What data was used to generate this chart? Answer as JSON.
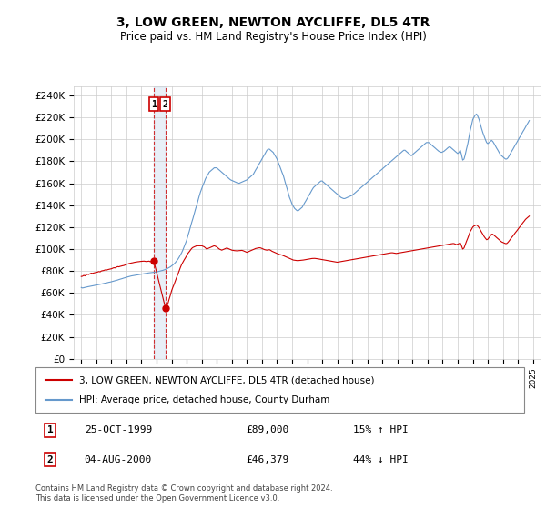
{
  "title": "3, LOW GREEN, NEWTON AYCLIFFE, DL5 4TR",
  "subtitle": "Price paid vs. HM Land Registry's House Price Index (HPI)",
  "ylabel_ticks": [
    0,
    20000,
    40000,
    60000,
    80000,
    100000,
    120000,
    140000,
    160000,
    180000,
    200000,
    220000,
    240000
  ],
  "ylabel_labels": [
    "£0",
    "£20K",
    "£40K",
    "£60K",
    "£80K",
    "£100K",
    "£120K",
    "£140K",
    "£160K",
    "£180K",
    "£200K",
    "£220K",
    "£240K"
  ],
  "xlim": [
    1994.5,
    2025.5
  ],
  "ylim": [
    0,
    248000
  ],
  "transaction1": {
    "date": "25-OCT-1999",
    "year": 1999.82,
    "price": 89000,
    "label": "15% ↑ HPI",
    "num": "1"
  },
  "transaction2": {
    "date": "04-AUG-2000",
    "year": 2000.59,
    "price": 46379,
    "label": "44% ↓ HPI",
    "num": "2"
  },
  "legend_line1": "3, LOW GREEN, NEWTON AYCLIFFE, DL5 4TR (detached house)",
  "legend_line2": "HPI: Average price, detached house, County Durham",
  "footer": "Contains HM Land Registry data © Crown copyright and database right 2024.\nThis data is licensed under the Open Government Licence v3.0.",
  "red_color": "#cc0000",
  "blue_color": "#6699cc",
  "background_color": "#ffffff",
  "grid_color": "#cccccc",
  "hpi_years": [
    1995,
    1995.08,
    1995.17,
    1995.25,
    1995.33,
    1995.42,
    1995.5,
    1995.58,
    1995.67,
    1995.75,
    1995.83,
    1995.92,
    1996,
    1996.08,
    1996.17,
    1996.25,
    1996.33,
    1996.42,
    1996.5,
    1996.58,
    1996.67,
    1996.75,
    1996.83,
    1996.92,
    1997,
    1997.08,
    1997.17,
    1997.25,
    1997.33,
    1997.42,
    1997.5,
    1997.58,
    1997.67,
    1997.75,
    1997.83,
    1997.92,
    1998,
    1998.08,
    1998.17,
    1998.25,
    1998.33,
    1998.42,
    1998.5,
    1998.58,
    1998.67,
    1998.75,
    1998.83,
    1998.92,
    1999,
    1999.08,
    1999.17,
    1999.25,
    1999.33,
    1999.42,
    1999.5,
    1999.58,
    1999.67,
    1999.75,
    1999.83,
    1999.92,
    2000,
    2000.08,
    2000.17,
    2000.25,
    2000.33,
    2000.42,
    2000.5,
    2000.58,
    2000.67,
    2000.75,
    2000.83,
    2000.92,
    2001,
    2001.08,
    2001.17,
    2001.25,
    2001.33,
    2001.42,
    2001.5,
    2001.58,
    2001.67,
    2001.75,
    2001.83,
    2001.92,
    2002,
    2002.08,
    2002.17,
    2002.25,
    2002.33,
    2002.42,
    2002.5,
    2002.58,
    2002.67,
    2002.75,
    2002.83,
    2002.92,
    2003,
    2003.08,
    2003.17,
    2003.25,
    2003.33,
    2003.42,
    2003.5,
    2003.58,
    2003.67,
    2003.75,
    2003.83,
    2003.92,
    2004,
    2004.08,
    2004.17,
    2004.25,
    2004.33,
    2004.42,
    2004.5,
    2004.58,
    2004.67,
    2004.75,
    2004.83,
    2004.92,
    2005,
    2005.08,
    2005.17,
    2005.25,
    2005.33,
    2005.42,
    2005.5,
    2005.58,
    2005.67,
    2005.75,
    2005.83,
    2005.92,
    2006,
    2006.08,
    2006.17,
    2006.25,
    2006.33,
    2006.42,
    2006.5,
    2006.58,
    2006.67,
    2006.75,
    2006.83,
    2006.92,
    2007,
    2007.08,
    2007.17,
    2007.25,
    2007.33,
    2007.42,
    2007.5,
    2007.58,
    2007.67,
    2007.75,
    2007.83,
    2007.92,
    2008,
    2008.08,
    2008.17,
    2008.25,
    2008.33,
    2008.42,
    2008.5,
    2008.58,
    2008.67,
    2008.75,
    2008.83,
    2008.92,
    2009,
    2009.08,
    2009.17,
    2009.25,
    2009.33,
    2009.42,
    2009.5,
    2009.58,
    2009.67,
    2009.75,
    2009.83,
    2009.92,
    2010,
    2010.08,
    2010.17,
    2010.25,
    2010.33,
    2010.42,
    2010.5,
    2010.58,
    2010.67,
    2010.75,
    2010.83,
    2010.92,
    2011,
    2011.08,
    2011.17,
    2011.25,
    2011.33,
    2011.42,
    2011.5,
    2011.58,
    2011.67,
    2011.75,
    2011.83,
    2011.92,
    2012,
    2012.08,
    2012.17,
    2012.25,
    2012.33,
    2012.42,
    2012.5,
    2012.58,
    2012.67,
    2012.75,
    2012.83,
    2012.92,
    2013,
    2013.08,
    2013.17,
    2013.25,
    2013.33,
    2013.42,
    2013.5,
    2013.58,
    2013.67,
    2013.75,
    2013.83,
    2013.92,
    2014,
    2014.08,
    2014.17,
    2014.25,
    2014.33,
    2014.42,
    2014.5,
    2014.58,
    2014.67,
    2014.75,
    2014.83,
    2014.92,
    2015,
    2015.08,
    2015.17,
    2015.25,
    2015.33,
    2015.42,
    2015.5,
    2015.58,
    2015.67,
    2015.75,
    2015.83,
    2015.92,
    2016,
    2016.08,
    2016.17,
    2016.25,
    2016.33,
    2016.42,
    2016.5,
    2016.58,
    2016.67,
    2016.75,
    2016.83,
    2016.92,
    2017,
    2017.08,
    2017.17,
    2017.25,
    2017.33,
    2017.42,
    2017.5,
    2017.58,
    2017.67,
    2017.75,
    2017.83,
    2017.92,
    2018,
    2018.08,
    2018.17,
    2018.25,
    2018.33,
    2018.42,
    2018.5,
    2018.58,
    2018.67,
    2018.75,
    2018.83,
    2018.92,
    2019,
    2019.08,
    2019.17,
    2019.25,
    2019.33,
    2019.42,
    2019.5,
    2019.58,
    2019.67,
    2019.75,
    2019.83,
    2019.92,
    2020,
    2020.08,
    2020.17,
    2020.25,
    2020.33,
    2020.42,
    2020.5,
    2020.58,
    2020.67,
    2020.75,
    2020.83,
    2020.92,
    2021,
    2021.08,
    2021.17,
    2021.25,
    2021.33,
    2021.42,
    2021.5,
    2021.58,
    2021.67,
    2021.75,
    2021.83,
    2021.92,
    2022,
    2022.08,
    2022.17,
    2022.25,
    2022.33,
    2022.42,
    2022.5,
    2022.58,
    2022.67,
    2022.75,
    2022.83,
    2022.92,
    2023,
    2023.08,
    2023.17,
    2023.25,
    2023.33,
    2023.42,
    2023.5,
    2023.58,
    2023.67,
    2023.75,
    2023.83,
    2023.92,
    2024,
    2024.08,
    2024.17,
    2024.25,
    2024.33,
    2024.42,
    2024.5,
    2024.58,
    2024.67,
    2024.75
  ],
  "hpi_values": [
    65000,
    64500,
    64800,
    65100,
    65300,
    65600,
    65800,
    66000,
    66300,
    66500,
    66700,
    67000,
    67200,
    67400,
    67700,
    67900,
    68100,
    68400,
    68600,
    68900,
    69100,
    69400,
    69700,
    69900,
    70200,
    70500,
    70800,
    71200,
    71500,
    71800,
    72200,
    72500,
    72900,
    73200,
    73600,
    73900,
    74300,
    74600,
    75000,
    75200,
    75500,
    75700,
    75900,
    76100,
    76300,
    76500,
    76700,
    76900,
    77100,
    77300,
    77500,
    77700,
    77900,
    78100,
    78300,
    78400,
    78500,
    78700,
    78800,
    79000,
    79200,
    79400,
    79700,
    80000,
    80300,
    80600,
    81000,
    81400,
    81900,
    82500,
    83100,
    83800,
    84600,
    85500,
    86500,
    87700,
    89100,
    90700,
    92500,
    94500,
    96700,
    99200,
    102000,
    105000,
    108000,
    112000,
    116000,
    120000,
    124000,
    128000,
    132000,
    136000,
    140000,
    144000,
    148000,
    152000,
    155000,
    158000,
    161000,
    164000,
    166000,
    168000,
    170000,
    171000,
    172000,
    173000,
    174000,
    174000,
    174000,
    173000,
    172000,
    171000,
    170000,
    169000,
    168000,
    167000,
    166000,
    165000,
    164000,
    163000,
    162500,
    162000,
    161500,
    161000,
    160500,
    160000,
    160000,
    160500,
    161000,
    161500,
    162000,
    162500,
    163000,
    164000,
    165000,
    166000,
    167000,
    168000,
    170000,
    172000,
    174000,
    176000,
    178000,
    180000,
    182000,
    184000,
    186000,
    188000,
    190000,
    191000,
    191000,
    190000,
    189000,
    188000,
    186000,
    184000,
    182000,
    179000,
    176000,
    173000,
    170000,
    167000,
    163000,
    159000,
    155000,
    151000,
    147000,
    144000,
    141000,
    139000,
    137000,
    136000,
    135000,
    135000,
    136000,
    137000,
    138000,
    140000,
    142000,
    144000,
    146000,
    148000,
    150000,
    152000,
    154000,
    156000,
    157000,
    158000,
    159000,
    160000,
    161000,
    162000,
    162000,
    161000,
    160000,
    159000,
    158000,
    157000,
    156000,
    155000,
    154000,
    153000,
    152000,
    151000,
    150000,
    149000,
    148000,
    147000,
    146500,
    146000,
    146000,
    146500,
    147000,
    147500,
    148000,
    148500,
    149000,
    150000,
    151000,
    152000,
    153000,
    154000,
    155000,
    156000,
    157000,
    158000,
    159000,
    160000,
    161000,
    162000,
    163000,
    164000,
    165000,
    166000,
    167000,
    168000,
    169000,
    170000,
    171000,
    172000,
    173000,
    174000,
    175000,
    176000,
    177000,
    178000,
    179000,
    180000,
    181000,
    182000,
    183000,
    184000,
    185000,
    186000,
    187000,
    188000,
    189000,
    190000,
    190000,
    189000,
    188000,
    187000,
    186000,
    185000,
    186000,
    187000,
    188000,
    189000,
    190000,
    191000,
    192000,
    193000,
    194000,
    195000,
    196000,
    197000,
    197000,
    197000,
    196000,
    195000,
    194000,
    193000,
    192000,
    191000,
    190000,
    189000,
    188500,
    188000,
    188500,
    189000,
    190000,
    191000,
    192000,
    193000,
    193000,
    192000,
    191000,
    190000,
    189000,
    188000,
    187000,
    188000,
    190000,
    186000,
    181000,
    182000,
    186000,
    191000,
    196000,
    202000,
    208000,
    213000,
    218000,
    220000,
    222000,
    223000,
    221000,
    218000,
    214000,
    210000,
    206000,
    203000,
    200000,
    197000,
    196000,
    197000,
    198000,
    199000,
    198000,
    196000,
    194000,
    192000,
    190000,
    188000,
    186000,
    185000,
    184000,
    183000,
    182000,
    182000,
    183000,
    185000,
    187000,
    189000,
    191000,
    193000,
    195000,
    197000,
    199000,
    201000,
    203000,
    205000,
    207000,
    209000,
    211000,
    213000,
    215000,
    217000
  ],
  "red_years_seg1": [
    1995,
    1995.08,
    1995.17,
    1995.25,
    1995.33,
    1995.42,
    1995.5,
    1995.58,
    1995.67,
    1995.75,
    1995.83,
    1995.92,
    1996,
    1996.08,
    1996.17,
    1996.25,
    1996.33,
    1996.42,
    1996.5,
    1996.58,
    1996.67,
    1996.75,
    1996.83,
    1996.92,
    1997,
    1997.08,
    1997.17,
    1997.25,
    1997.33,
    1997.42,
    1997.5,
    1997.58,
    1997.67,
    1997.75,
    1997.83,
    1997.92,
    1998,
    1998.08,
    1998.17,
    1998.25,
    1998.33,
    1998.42,
    1998.5,
    1998.58,
    1998.67,
    1998.75,
    1998.83,
    1998.92,
    1999,
    1999.08,
    1999.17,
    1999.25,
    1999.33,
    1999.42,
    1999.5,
    1999.58,
    1999.67,
    1999.75,
    1999.82
  ],
  "red_values_seg1": [
    75000,
    75200,
    76000,
    75500,
    76500,
    77000,
    76800,
    77500,
    78000,
    77800,
    78200,
    78500,
    78800,
    79000,
    79500,
    79200,
    80000,
    80300,
    80500,
    81000,
    80800,
    81200,
    81500,
    81800,
    82000,
    82500,
    83000,
    82800,
    83500,
    84000,
    83800,
    84200,
    84500,
    84800,
    85000,
    85500,
    86000,
    86300,
    86800,
    87000,
    87300,
    87500,
    87800,
    88000,
    88200,
    88400,
    88500,
    88700,
    88800,
    88900,
    89000,
    88800,
    88600,
    88800,
    89000,
    88500,
    88800,
    89000,
    89000
  ],
  "red_years_seg2": [
    2000.59,
    2000.67,
    2000.75,
    2000.83,
    2000.92,
    2001,
    2001.08,
    2001.17,
    2001.25,
    2001.33,
    2001.42,
    2001.5,
    2001.58,
    2001.67,
    2001.75,
    2001.83,
    2001.92,
    2002,
    2002.08,
    2002.17,
    2002.25,
    2002.33,
    2002.42,
    2002.5,
    2002.58,
    2002.67,
    2002.75,
    2002.83,
    2002.92,
    2003,
    2003.08,
    2003.17,
    2003.25,
    2003.33,
    2003.42,
    2003.5,
    2003.58,
    2003.67,
    2003.75,
    2003.83,
    2003.92,
    2004,
    2004.08,
    2004.17,
    2004.25,
    2004.33,
    2004.42,
    2004.5,
    2004.58,
    2004.67,
    2004.75,
    2004.83,
    2004.92,
    2005,
    2005.08,
    2005.17,
    2005.25,
    2005.33,
    2005.42,
    2005.5,
    2005.58,
    2005.67,
    2005.75,
    2005.83,
    2005.92,
    2006,
    2006.08,
    2006.17,
    2006.25,
    2006.33,
    2006.42,
    2006.5,
    2006.58,
    2006.67,
    2006.75,
    2006.83,
    2006.92,
    2007,
    2007.08,
    2007.17,
    2007.25,
    2007.33,
    2007.42,
    2007.5,
    2007.58,
    2007.67,
    2007.75,
    2007.83,
    2007.92,
    2008,
    2008.08,
    2008.17,
    2008.25,
    2008.33,
    2008.42,
    2008.5,
    2008.58,
    2008.67,
    2008.75,
    2008.83,
    2008.92,
    2009,
    2009.08,
    2009.17,
    2009.25,
    2009.33,
    2009.42,
    2009.5,
    2009.58,
    2009.67,
    2009.75,
    2009.83,
    2009.92,
    2010,
    2010.08,
    2010.17,
    2010.25,
    2010.33,
    2010.42,
    2010.5,
    2010.58,
    2010.67,
    2010.75,
    2010.83,
    2010.92,
    2011,
    2011.08,
    2011.17,
    2011.25,
    2011.33,
    2011.42,
    2011.5,
    2011.58,
    2011.67,
    2011.75,
    2011.83,
    2011.92,
    2012,
    2012.08,
    2012.17,
    2012.25,
    2012.33,
    2012.42,
    2012.5,
    2012.58,
    2012.67,
    2012.75,
    2012.83,
    2012.92,
    2013,
    2013.08,
    2013.17,
    2013.25,
    2013.33,
    2013.42,
    2013.5,
    2013.58,
    2013.67,
    2013.75,
    2013.83,
    2013.92,
    2014,
    2014.08,
    2014.17,
    2014.25,
    2014.33,
    2014.42,
    2014.5,
    2014.58,
    2014.67,
    2014.75,
    2014.83,
    2014.92,
    2015,
    2015.08,
    2015.17,
    2015.25,
    2015.33,
    2015.42,
    2015.5,
    2015.58,
    2015.67,
    2015.75,
    2015.83,
    2015.92,
    2016,
    2016.08,
    2016.17,
    2016.25,
    2016.33,
    2016.42,
    2016.5,
    2016.58,
    2016.67,
    2016.75,
    2016.83,
    2016.92,
    2017,
    2017.08,
    2017.17,
    2017.25,
    2017.33,
    2017.42,
    2017.5,
    2017.58,
    2017.67,
    2017.75,
    2017.83,
    2017.92,
    2018,
    2018.08,
    2018.17,
    2018.25,
    2018.33,
    2018.42,
    2018.5,
    2018.58,
    2018.67,
    2018.75,
    2018.83,
    2018.92,
    2019,
    2019.08,
    2019.17,
    2019.25,
    2019.33,
    2019.42,
    2019.5,
    2019.58,
    2019.67,
    2019.75,
    2019.83,
    2019.92,
    2020,
    2020.08,
    2020.17,
    2020.25,
    2020.33,
    2020.42,
    2020.5,
    2020.58,
    2020.67,
    2020.75,
    2020.83,
    2020.92,
    2021,
    2021.08,
    2021.17,
    2021.25,
    2021.33,
    2021.42,
    2021.5,
    2021.58,
    2021.67,
    2021.75,
    2021.83,
    2021.92,
    2022,
    2022.08,
    2022.17,
    2022.25,
    2022.33,
    2022.42,
    2022.5,
    2022.58,
    2022.67,
    2022.75,
    2022.83,
    2022.92,
    2023,
    2023.08,
    2023.17,
    2023.25,
    2023.33,
    2023.42,
    2023.5,
    2023.58,
    2023.67,
    2023.75,
    2023.83,
    2023.92,
    2024,
    2024.08,
    2024.17,
    2024.25,
    2024.33,
    2024.42,
    2024.5,
    2024.58,
    2024.67,
    2024.75
  ],
  "red_values_seg2": [
    46379,
    47000,
    50000,
    54000,
    58000,
    62000,
    65000,
    68000,
    71000,
    74000,
    77000,
    80000,
    83000,
    86000,
    88000,
    90000,
    92000,
    94000,
    96000,
    97500,
    99000,
    100500,
    101500,
    102000,
    102500,
    103000,
    103000,
    103000,
    103000,
    103000,
    102500,
    102000,
    101000,
    100000,
    100500,
    101000,
    101500,
    102000,
    102500,
    103000,
    102500,
    102000,
    101000,
    100000,
    99500,
    99000,
    99500,
    100000,
    100500,
    101000,
    100500,
    100000,
    99500,
    99000,
    98800,
    98600,
    98500,
    98400,
    98500,
    98600,
    98700,
    98800,
    98500,
    98000,
    97500,
    97000,
    97500,
    98000,
    98500,
    99000,
    99500,
    100000,
    100500,
    100800,
    101000,
    101200,
    101000,
    100500,
    100000,
    99500,
    99200,
    99000,
    99200,
    99400,
    98800,
    98000,
    97500,
    97000,
    96500,
    96000,
    95500,
    95000,
    94800,
    94500,
    94000,
    93500,
    93000,
    92500,
    92000,
    91500,
    91000,
    90500,
    90000,
    89800,
    89600,
    89500,
    89500,
    89600,
    89700,
    89800,
    90000,
    90200,
    90400,
    90600,
    90800,
    91000,
    91200,
    91400,
    91500,
    91500,
    91400,
    91200,
    91000,
    90800,
    90600,
    90400,
    90200,
    90000,
    89800,
    89600,
    89400,
    89200,
    89000,
    88800,
    88600,
    88400,
    88200,
    88000,
    88200,
    88400,
    88600,
    88800,
    89000,
    89200,
    89400,
    89600,
    89800,
    90000,
    90200,
    90400,
    90600,
    90800,
    91000,
    91200,
    91400,
    91600,
    91800,
    92000,
    92200,
    92400,
    92600,
    92800,
    93000,
    93200,
    93400,
    93600,
    93800,
    94000,
    94200,
    94400,
    94600,
    94800,
    95000,
    95200,
    95400,
    95600,
    95800,
    96000,
    96200,
    96400,
    96600,
    96600,
    96400,
    96200,
    96000,
    96200,
    96400,
    96600,
    96800,
    97000,
    97200,
    97400,
    97600,
    97800,
    98000,
    98200,
    98400,
    98600,
    98800,
    99000,
    99200,
    99400,
    99600,
    99800,
    100000,
    100200,
    100400,
    100600,
    100800,
    101000,
    101200,
    101400,
    101600,
    101800,
    102000,
    102200,
    102400,
    102600,
    102800,
    103000,
    103200,
    103400,
    103600,
    103800,
    104000,
    104200,
    104400,
    104600,
    104800,
    105000,
    105000,
    104500,
    104000,
    104500,
    105000,
    105500,
    103000,
    100000,
    101000,
    104000,
    107000,
    110000,
    113000,
    116000,
    118000,
    120000,
    121000,
    121500,
    122000,
    121000,
    119500,
    117500,
    115500,
    113500,
    111500,
    110000,
    108500,
    109000,
    110500,
    112000,
    113500,
    113500,
    112500,
    111500,
    110500,
    109500,
    108500,
    107500,
    106500,
    106000,
    105500,
    105000,
    105000,
    106000,
    107500,
    109000,
    110500,
    112000,
    113500,
    115000,
    116500,
    118000,
    119500,
    121000,
    122500,
    124000,
    125500,
    127000,
    128000,
    129000,
    130000
  ]
}
